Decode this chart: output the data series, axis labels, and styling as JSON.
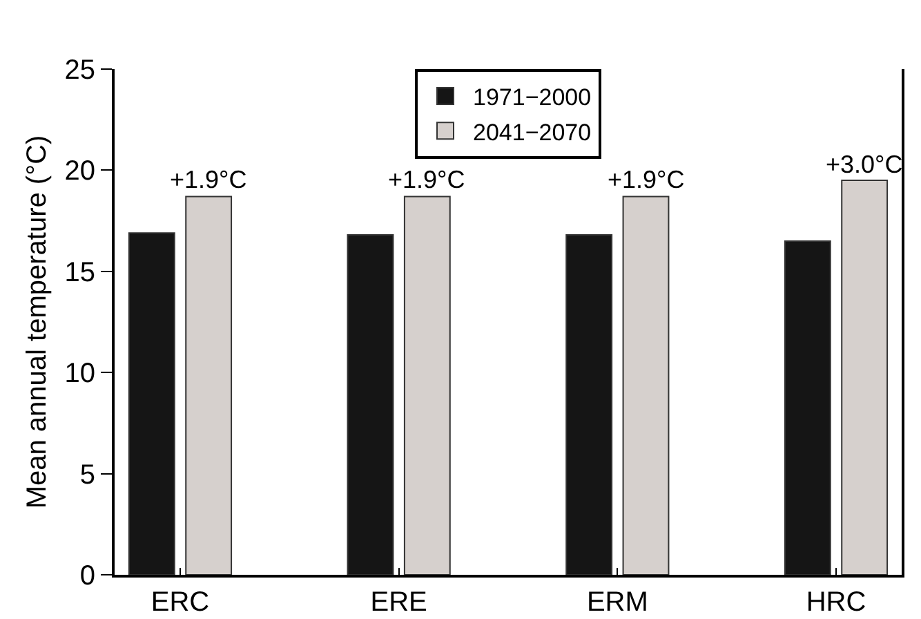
{
  "chart_data": {
    "type": "bar",
    "ylabel": "Mean annual temperature (°C)",
    "categories": [
      "ERC",
      "ERE",
      "ERM",
      "HRC"
    ],
    "series": [
      {
        "name": "1971−2000",
        "color": "#151515",
        "values": [
          16.9,
          16.8,
          16.8,
          16.5
        ]
      },
      {
        "name": "2041−2070",
        "color": "#d6d0cd",
        "values": [
          18.7,
          18.7,
          18.7,
          19.5
        ]
      }
    ],
    "ylim": [
      0,
      25
    ],
    "yticks": [
      0,
      5,
      10,
      15,
      20,
      25
    ],
    "grid": false,
    "legend": "top",
    "annotations": [
      {
        "text": "+1.9°C",
        "x": "ERC",
        "y": 18.7
      },
      {
        "text": "+1.9°C",
        "x": "ERE",
        "y": 18.7
      },
      {
        "text": "+1.9°C",
        "x": "ERM",
        "y": 18.7
      },
      {
        "text": "+3.0°C",
        "x": "HRC",
        "y": 19.5
      }
    ]
  }
}
